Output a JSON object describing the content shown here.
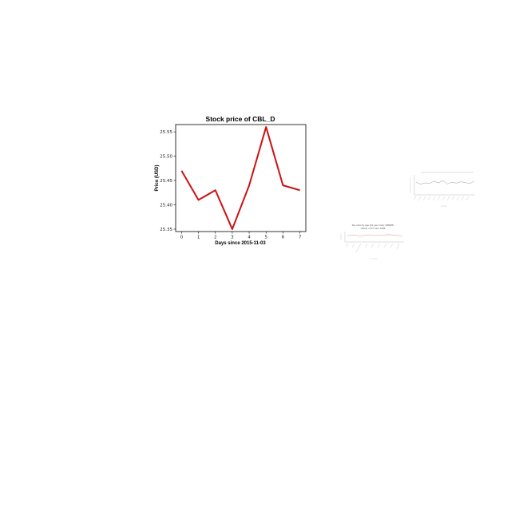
{
  "chart_data": [
    {
      "type": "line",
      "title": "Stock price of CBL_D",
      "xlabel": "Days since 2015-11-03",
      "ylabel": "Price (USD)",
      "x": [
        0,
        1,
        2,
        3,
        4,
        5,
        6,
        7
      ],
      "series": [
        {
          "values": [
            25.47,
            25.41,
            25.43,
            25.35,
            25.44,
            25.56,
            25.44,
            25.43
          ]
        }
      ],
      "xticks": [
        "0",
        "1",
        "2",
        "3",
        "4",
        "5",
        "6",
        "7"
      ],
      "yticks": [
        "25.35",
        "25.40",
        "25.45",
        "25.50",
        "25.55"
      ],
      "xlim": [
        -0.35,
        7.35
      ],
      "ylim": [
        25.345,
        25.565
      ],
      "grid": false,
      "line_color": "#cc1111"
    },
    {
      "type": "line",
      "line_color": "#999999",
      "series": [
        {
          "values": [
            0.55,
            0.4,
            0.5,
            0.45,
            0.62,
            0.5,
            0.66,
            0.42,
            0.55,
            0.48,
            0.58,
            0.52,
            0.45,
            0.62
          ]
        }
      ]
    },
    {
      "type": "line",
      "title": "Sex ratio by age (45 year olds) (UNWPP) (2021) in the Year 1998",
      "line_color": "#e8a090",
      "series": [
        {
          "values": [
            0.5,
            0.55,
            0.45,
            0.6,
            0.55,
            0.5,
            0.62,
            0.55,
            0.4
          ]
        }
      ]
    }
  ]
}
